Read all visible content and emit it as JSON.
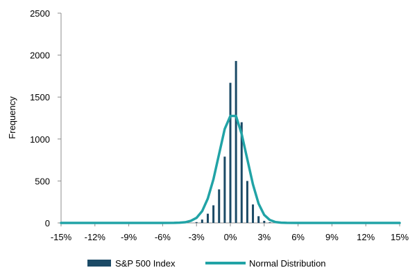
{
  "chart_data": {
    "type": "bar",
    "title": "",
    "xlabel": "",
    "ylabel": "Frequency",
    "xlim": [
      -15,
      15
    ],
    "ylim": [
      0,
      2500
    ],
    "x_ticks": [
      -15,
      -12,
      -9,
      -6,
      -3,
      0,
      3,
      6,
      9,
      12,
      15
    ],
    "x_tick_labels": [
      "-15%",
      "-12%",
      "-9%",
      "-6%",
      "-3%",
      "0%",
      "3%",
      "6%",
      "9%",
      "12%",
      "15%"
    ],
    "y_ticks": [
      0,
      500,
      1000,
      1500,
      2000,
      2500
    ],
    "y_tick_labels": [
      "0",
      "500",
      "1000",
      "1500",
      "2000",
      "2500"
    ],
    "grid": false,
    "legend_position": "bottom",
    "series": [
      {
        "name": "S&P 500 Index",
        "type": "bar",
        "color": "#1b4a66",
        "x": [
          -3.0,
          -2.5,
          -2.0,
          -1.5,
          -1.0,
          -0.5,
          0.0,
          0.5,
          1.0,
          1.5,
          2.0,
          2.5,
          3.0,
          3.5
        ],
        "values": [
          10,
          40,
          110,
          210,
          400,
          790,
          1670,
          1930,
          1200,
          500,
          220,
          80,
          25,
          8
        ]
      },
      {
        "name": "Normal Distribution",
        "type": "line",
        "color": "#21a3a6",
        "x": [
          -15,
          -14,
          -13,
          -12,
          -11,
          -10,
          -9,
          -8,
          -7,
          -6,
          -5,
          -4.5,
          -4,
          -3.5,
          -3,
          -2.5,
          -2,
          -1.5,
          -1,
          -0.5,
          0,
          0.5,
          1,
          1.5,
          2,
          2.5,
          3,
          3.5,
          4,
          4.5,
          5,
          6,
          7,
          8,
          9,
          10,
          11,
          12,
          13,
          14,
          15
        ],
        "values": [
          0,
          0,
          0,
          0,
          0,
          0,
          0,
          0,
          0,
          0,
          1,
          3,
          8,
          25,
          60,
          140,
          290,
          520,
          820,
          1120,
          1275,
          1275,
          1060,
          760,
          460,
          230,
          95,
          35,
          10,
          3,
          1,
          0,
          0,
          0,
          0,
          0,
          0,
          0,
          0,
          0,
          0
        ]
      }
    ]
  }
}
